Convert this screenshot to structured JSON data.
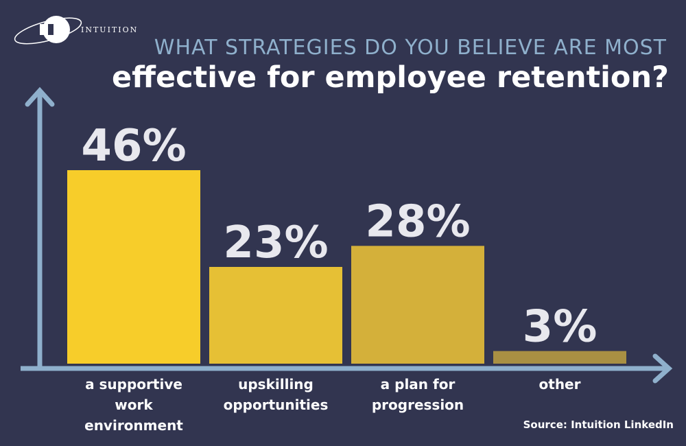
{
  "logo": "INTUITION",
  "chart_data": {
    "type": "bar",
    "title": "WHAT STRATEGIES DO YOU BELIEVE ARE MOST",
    "subtitle": "effective for employee retention?",
    "categories": [
      "a supportive work environment",
      "upskilling opportunities",
      "a plan for progression",
      "other"
    ],
    "values": [
      46,
      23,
      28,
      3
    ],
    "value_labels": [
      "46%",
      "23%",
      "28%",
      "3%"
    ],
    "colors": [
      "#f7cd2a",
      "#e6c035",
      "#d4b03a",
      "#a99043"
    ],
    "source": "Source: Intuition LinkedIn"
  }
}
